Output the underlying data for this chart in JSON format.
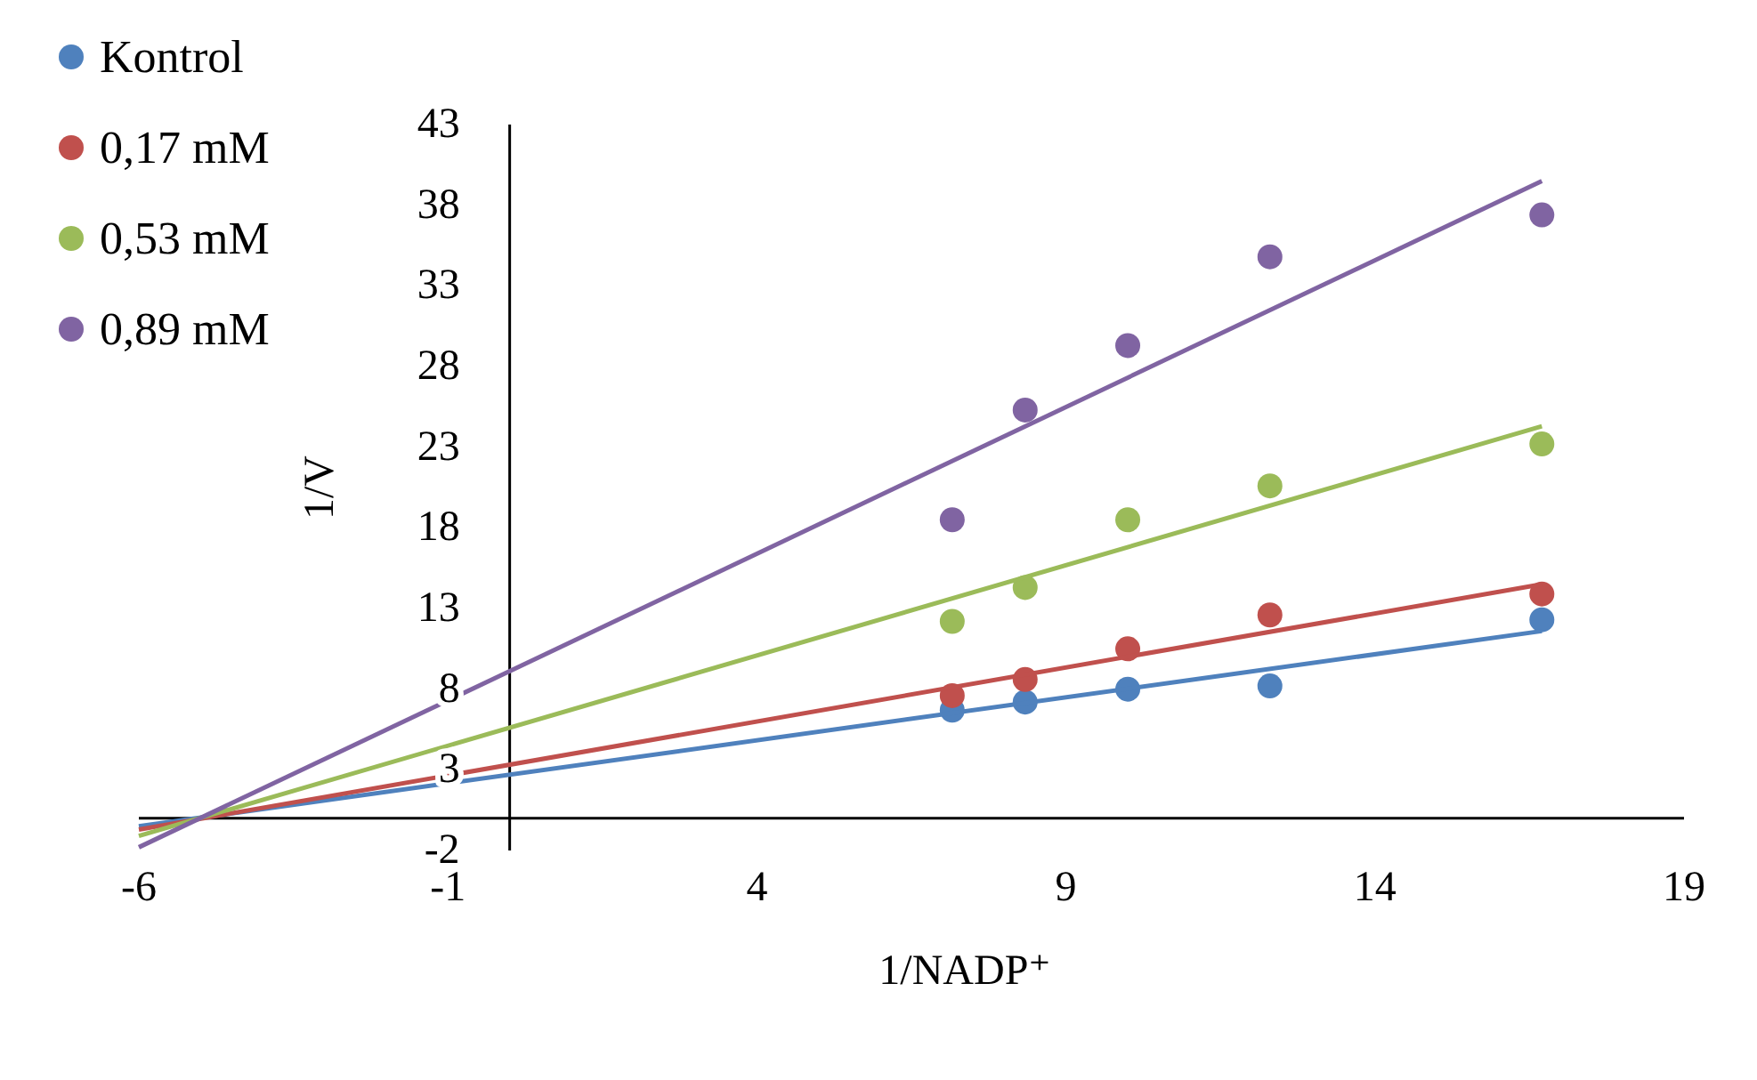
{
  "chart_data": {
    "type": "scatter",
    "xlabel": "1/NADP⁺",
    "ylabel": "1/V",
    "xlim": [
      -6,
      19
    ],
    "xticks": [
      -6,
      -1,
      4,
      9,
      14,
      19
    ],
    "ylim": [
      -2,
      43
    ],
    "yticks": [
      -2,
      3,
      8,
      13,
      18,
      23,
      28,
      33,
      38,
      43
    ],
    "grid": false,
    "legend": "top left",
    "marker": "circle",
    "series": [
      {
        "name": "Kontrol",
        "color": "#4f81bd",
        "x": [
          7.16,
          8.34,
          10.0,
          12.3,
          16.7
        ],
        "values": [
          6.7,
          7.2,
          8.0,
          8.2,
          12.3
        ]
      },
      {
        "name": "0,17 mM",
        "color": "#c0504d",
        "x": [
          7.16,
          8.34,
          10.0,
          12.3,
          16.7
        ],
        "values": [
          7.6,
          8.6,
          10.5,
          12.6,
          13.9
        ]
      },
      {
        "name": "0,53 mM",
        "color": "#9bbb59",
        "x": [
          7.16,
          8.34,
          10.0,
          12.3,
          16.7
        ],
        "values": [
          12.2,
          14.3,
          18.5,
          20.6,
          23.2
        ]
      },
      {
        "name": "0,89 mM",
        "color": "#8064a2",
        "x": [
          7.16,
          8.34,
          10.0,
          12.3,
          16.7
        ],
        "values": [
          18.5,
          25.3,
          29.3,
          34.8,
          37.4
        ]
      },
      {
        "type": "line",
        "marker": "none",
        "color": "#4f81bd",
        "x": [
          -6,
          16.7
        ],
        "values": [
          -0.5,
          11.6
        ]
      },
      {
        "type": "line",
        "marker": "none",
        "color": "#c0504d",
        "x": [
          -6,
          16.7
        ],
        "values": [
          -0.7,
          14.5
        ]
      },
      {
        "type": "line",
        "marker": "none",
        "color": "#9bbb59",
        "x": [
          -6,
          16.7
        ],
        "values": [
          -1.1,
          24.3
        ]
      },
      {
        "type": "line",
        "marker": "none",
        "color": "#8064a2",
        "x": [
          -6,
          16.7
        ],
        "values": [
          -1.8,
          39.5
        ]
      }
    ]
  }
}
